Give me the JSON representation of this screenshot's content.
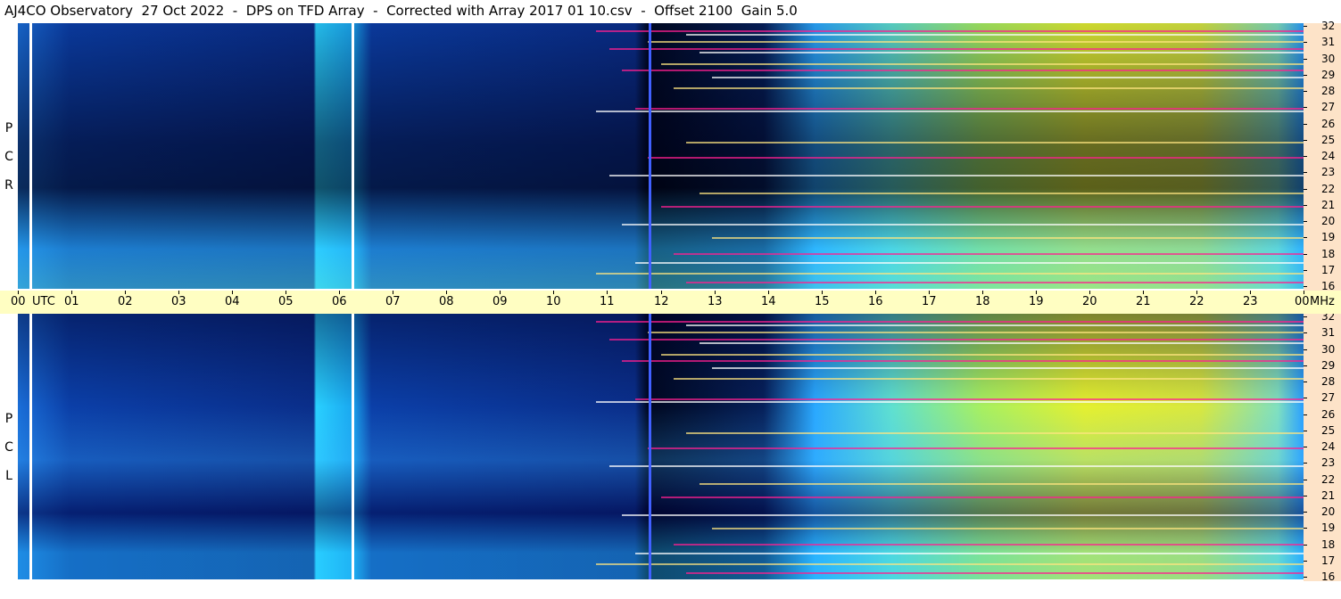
{
  "title": "AJ4CO Observatory  27 Oct 2022  -  DPS on TFD Array  -  Corrected with Array 2017 01 10.csv  -  Offset 2100  Gain 5.0",
  "time_axis": {
    "labels": [
      "00",
      "UTC",
      "01",
      "02",
      "03",
      "04",
      "05",
      "06",
      "07",
      "08",
      "09",
      "10",
      "11",
      "12",
      "13",
      "14",
      "15",
      "16",
      "17",
      "18",
      "19",
      "20",
      "21",
      "22",
      "23",
      "00",
      "MHz"
    ]
  },
  "panels": [
    {
      "id": "rcp",
      "letters": [
        "P",
        "C",
        "R"
      ]
    },
    {
      "id": "lcp",
      "letters": [
        "P",
        "C",
        "L"
      ]
    }
  ],
  "colors": {
    "axis_bg": "#fde3c8",
    "time_bg": "#fffec2",
    "low": "#0a1a55",
    "mid": "#1fb0ff",
    "high": "#e8f000",
    "hot": "#ff2090"
  },
  "chart_data": {
    "type": "heatmap",
    "title": "AJ4CO Observatory  27 Oct 2022  -  DPS on TFD Array  -  Corrected with Array 2017 01 10.csv  -  Offset 2100  Gain 5.0",
    "x_unit": "UTC",
    "y_unit": "MHz",
    "xlim": [
      0,
      24
    ],
    "ylim": [
      16,
      32
    ],
    "x_ticks": [
      "00",
      "01",
      "02",
      "03",
      "04",
      "05",
      "06",
      "07",
      "08",
      "09",
      "10",
      "11",
      "12",
      "13",
      "14",
      "15",
      "16",
      "17",
      "18",
      "19",
      "20",
      "21",
      "22",
      "23",
      "00"
    ],
    "y_ticks": [
      16,
      17,
      18,
      19,
      20,
      21,
      22,
      23,
      24,
      25,
      26,
      27,
      28,
      29,
      30,
      31,
      32
    ],
    "panels": [
      "RCP",
      "LCP"
    ]
  }
}
